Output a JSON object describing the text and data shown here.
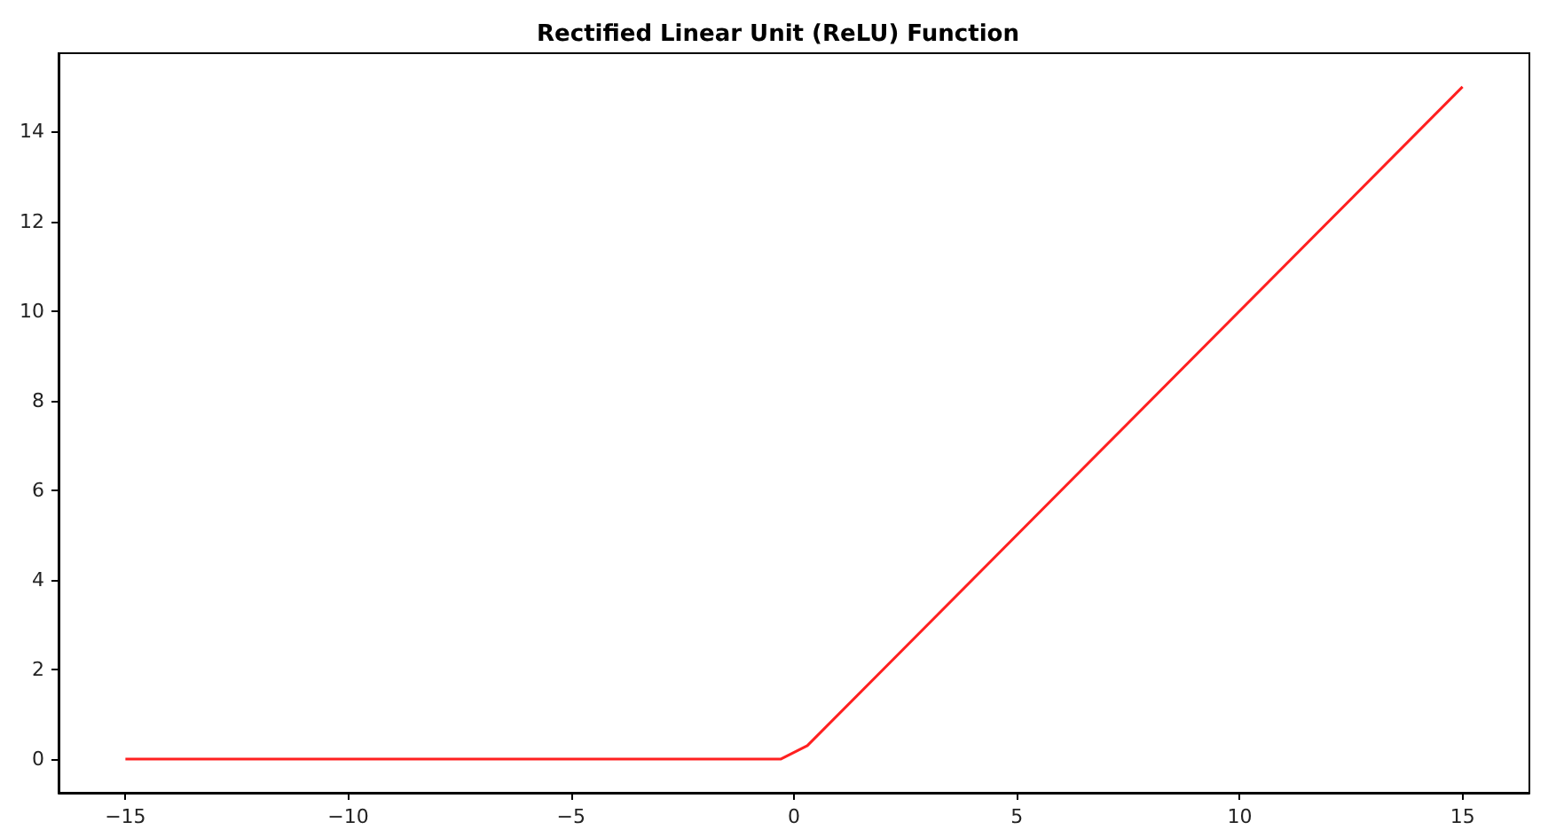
{
  "chart_data": {
    "type": "line",
    "title": "Rectified Linear Unit (ReLU) Function",
    "series": [
      {
        "color": "#ff2020",
        "x": [
          -15,
          -0.3,
          0.3,
          15
        ],
        "values": [
          0,
          0,
          0.3,
          15
        ]
      }
    ],
    "xlim": [
      -16.5,
      16.5
    ],
    "ylim": [
      -0.75,
      15.75
    ],
    "xticks": [
      {
        "value": -15,
        "label": "−15"
      },
      {
        "value": -10,
        "label": "−10"
      },
      {
        "value": -5,
        "label": "−5"
      },
      0,
      5,
      10,
      15
    ],
    "yticks": [
      0,
      2,
      4,
      6,
      8,
      10,
      12,
      14
    ],
    "grid": false,
    "marker": "none",
    "line_style": "solid"
  }
}
